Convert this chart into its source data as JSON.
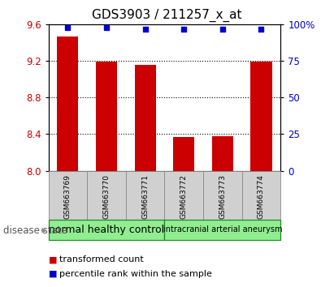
{
  "title": "GDS3903 / 211257_x_at",
  "samples": [
    "GSM663769",
    "GSM663770",
    "GSM663771",
    "GSM663772",
    "GSM663773",
    "GSM663774"
  ],
  "bar_values": [
    9.47,
    9.19,
    9.16,
    8.37,
    8.38,
    9.19
  ],
  "percentile_values": [
    98,
    98,
    97,
    97,
    97,
    97
  ],
  "ylim_left": [
    8.0,
    9.6
  ],
  "ylim_right": [
    0,
    100
  ],
  "yticks_left": [
    8.0,
    8.4,
    8.8,
    9.2,
    9.6
  ],
  "yticks_right": [
    0,
    25,
    50,
    75,
    100
  ],
  "bar_color": "#cc0000",
  "marker_color": "#0000cc",
  "bar_width": 0.55,
  "group1_label": "normal healthy control",
  "group2_label": "intracranial arterial aneurysm",
  "group_color": "#90ee90",
  "group_edge_color": "#228B22",
  "disease_state_label": "disease state",
  "legend_red_label": "transformed count",
  "legend_blue_label": "percentile rank within the sample",
  "title_fontsize": 11,
  "sample_fontsize": 6.5,
  "group1_fontsize": 9,
  "group2_fontsize": 7,
  "legend_fontsize": 8,
  "disease_fontsize": 8.5,
  "grid_color": "black",
  "gray_color": "#d0d0d0",
  "gray_edge": "#888888"
}
